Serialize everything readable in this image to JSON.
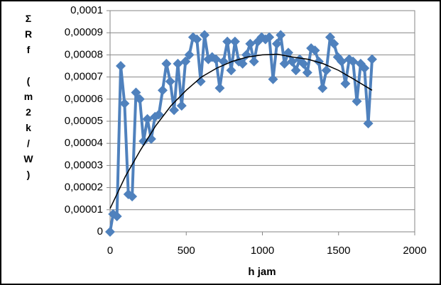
{
  "chart_data": {
    "type": "line",
    "x_label": "h jam",
    "y_label": "ΣRf (m2k/W)",
    "xlim": [
      0,
      2000
    ],
    "xticks": [
      0,
      500,
      1000,
      1500,
      2000
    ],
    "ylim": [
      0,
      0.0001
    ],
    "yticks": [
      0,
      {
        "value": 1e-05,
        "label": "0,00001"
      },
      {
        "value": 2e-05,
        "label": "0,00002"
      },
      {
        "value": 3e-05,
        "label": "0,00003"
      },
      {
        "value": 4e-05,
        "label": "0,00004"
      },
      {
        "value": 5e-05,
        "label": "0,00005"
      },
      {
        "value": 6e-05,
        "label": "0,00006"
      },
      {
        "value": 7e-05,
        "label": "0,00007"
      },
      {
        "value": 8e-05,
        "label": "0,00008"
      },
      {
        "value": 9e-05,
        "label": "0,00009"
      },
      {
        "value": 0.0001,
        "label": "0,0001"
      }
    ],
    "grid": true,
    "series": [
      {
        "color": "#4f81bd",
        "marker": "diamond",
        "x": [
          0,
          20,
          45,
          70,
          95,
          120,
          145,
          170,
          195,
          220,
          245,
          270,
          295,
          320,
          345,
          370,
          395,
          420,
          445,
          470,
          495,
          520,
          545,
          570,
          595,
          620,
          645,
          670,
          695,
          720,
          745,
          770,
          795,
          820,
          845,
          870,
          895,
          920,
          945,
          970,
          995,
          1020,
          1045,
          1070,
          1095,
          1120,
          1145,
          1170,
          1195,
          1220,
          1245,
          1270,
          1295,
          1320,
          1345,
          1370,
          1395,
          1420,
          1445,
          1470,
          1495,
          1520,
          1545,
          1570,
          1595,
          1620,
          1645,
          1670,
          1695,
          1720
        ],
        "values": [
          0,
          8e-06,
          7e-06,
          7.5e-05,
          5.8e-05,
          1.7e-05,
          1.6e-05,
          6.3e-05,
          6e-05,
          4.1e-05,
          5.1e-05,
          4.2e-05,
          5.2e-05,
          5.3e-05,
          6.4e-05,
          7.6e-05,
          6.8e-05,
          5.5e-05,
          7.6e-05,
          5.7e-05,
          7.7e-05,
          8e-05,
          8.8e-05,
          8.7e-05,
          6.8e-05,
          8.9e-05,
          7.8e-05,
          7.9e-05,
          7.8e-05,
          6.5e-05,
          7.7e-05,
          8.6e-05,
          7.3e-05,
          8.6e-05,
          7.7e-05,
          7.6e-05,
          8e-05,
          8.5e-05,
          7.7e-05,
          8.6e-05,
          8.8e-05,
          8.7e-05,
          8.8e-05,
          6.9e-05,
          8.5e-05,
          8.9e-05,
          7.6e-05,
          8.1e-05,
          7.7e-05,
          7.3e-05,
          7.8e-05,
          7.6e-05,
          7.2e-05,
          8.3e-05,
          8.2e-05,
          7.7e-05,
          6.5e-05,
          7.3e-05,
          8.8e-05,
          8.5e-05,
          7.9e-05,
          7.7e-05,
          6.7e-05,
          7.8e-05,
          7.7e-05,
          5.9e-05,
          7.6e-05,
          7.4e-05,
          4.9e-05,
          7.8e-05
        ]
      },
      {
        "color": "#000000",
        "marker": "none",
        "x": [
          0,
          100,
          200,
          300,
          400,
          500,
          600,
          700,
          800,
          900,
          1000,
          1100,
          1200,
          1300,
          1400,
          1500,
          1600,
          1720
        ],
        "values": [
          1.05e-05,
          2.5e-05,
          3.7e-05,
          4.8e-05,
          5.7e-05,
          6.4e-05,
          7e-05,
          7.4e-05,
          7.7e-05,
          7.9e-05,
          8e-05,
          8.03e-05,
          7.9e-05,
          7.8e-05,
          7.6e-05,
          7.3e-05,
          6.9e-05,
          6.4e-05
        ]
      }
    ]
  }
}
